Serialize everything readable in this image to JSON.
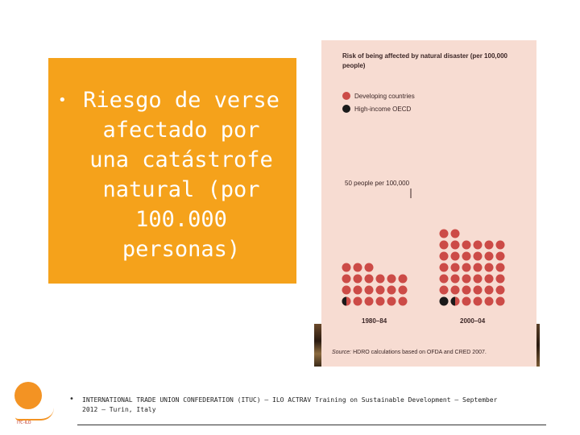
{
  "slide": {
    "bullet": "•",
    "main_text": "Riesgo de verse\nafectado por\nuna catástrofe\nnatural (por\n100.000\npersonas)"
  },
  "footer": {
    "bullet": "•",
    "text": "INTERNATIONAL TRADE UNION CONFEDERATION (ITUC) – ILO ACTRAV Training on Sustainable Development – September 2012 – Turin, Italy"
  },
  "colors": {
    "orange_box": "#f5a21b",
    "panel_bg": "#f7dcd2",
    "developing": "#cc4b47",
    "high_income": "#1a1a1a"
  },
  "chart_data": {
    "type": "dot-matrix",
    "title": "Risk of being affected by natural disaster (per 100,000 people)",
    "unit_note": "50 people per 100,000",
    "categories": [
      "1980–84",
      "2000–04"
    ],
    "series": [
      {
        "name": "Developing countries",
        "values": [
          1000,
          1800
        ]
      },
      {
        "name": "High-income OECD",
        "values": [
          25,
          75
        ]
      }
    ],
    "source_label": "Source:",
    "source_text": "HDRO calculations based on OFDA and CRED 2007."
  }
}
